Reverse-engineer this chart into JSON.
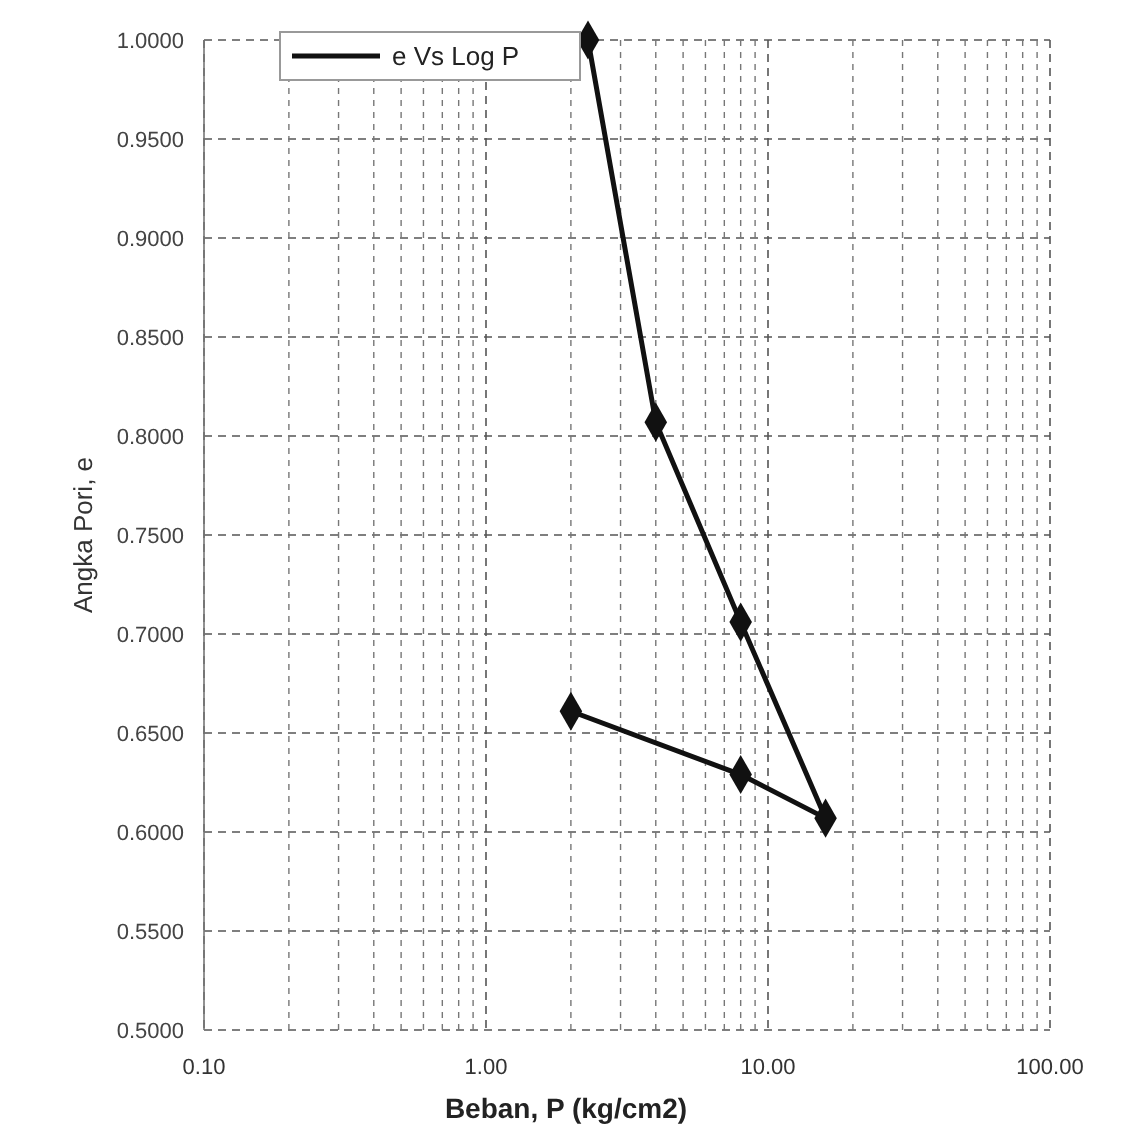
{
  "chart_data": {
    "type": "line",
    "xlabel": "Beban, P (kg/cm2)",
    "ylabel": "Angka Pori, e",
    "series": [
      {
        "name": "e Vs Log P",
        "color": "#111111",
        "x": [
          2.3,
          4,
          8,
          16,
          8,
          2
        ],
        "values": [
          1.0,
          0.807,
          0.706,
          0.607,
          0.629,
          0.661
        ]
      }
    ],
    "log": "x",
    "xlim": [
      0.1,
      100
    ],
    "xticks": [
      {
        "value": 0.1,
        "label": "0.10"
      },
      {
        "value": 1,
        "label": "1.00"
      },
      {
        "value": 10,
        "label": "10.00"
      },
      {
        "value": 100,
        "label": "100.00"
      }
    ],
    "ylim": [
      0.5,
      1.0
    ],
    "yticks": [
      {
        "value": 0.5,
        "label": "0.5000"
      },
      {
        "value": 0.55,
        "label": "0.5500"
      },
      {
        "value": 0.6,
        "label": "0.6000"
      },
      {
        "value": 0.65,
        "label": "0.6500"
      },
      {
        "value": 0.7,
        "label": "0.7000"
      },
      {
        "value": 0.75,
        "label": "0.7500"
      },
      {
        "value": 0.8,
        "label": "0.8000"
      },
      {
        "value": 0.85,
        "label": "0.8500"
      },
      {
        "value": 0.9,
        "label": "0.9000"
      },
      {
        "value": 0.95,
        "label": "0.9500"
      },
      {
        "value": 1.0,
        "label": "1.0000"
      }
    ],
    "grid": true,
    "legend": "top",
    "marker": "diamond",
    "line_style": "solid"
  }
}
